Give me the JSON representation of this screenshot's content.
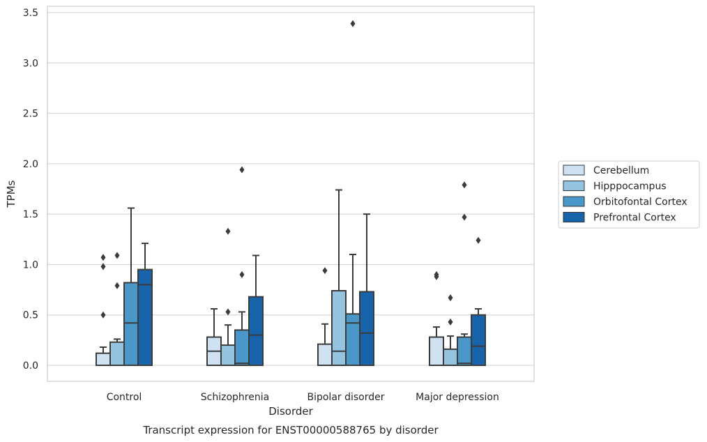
{
  "chart_data": {
    "type": "boxplot",
    "title": "",
    "caption": "Transcript expression for ENST00000588765 by disorder",
    "xlabel": "Disorder",
    "ylabel": "TPMs",
    "ylim": [
      -0.17,
      3.56
    ],
    "yticks": [
      "0.0",
      "0.5",
      "1.0",
      "1.5",
      "2.0",
      "2.5",
      "3.0",
      "3.5"
    ],
    "ytick_values": [
      0,
      0.5,
      1.0,
      1.5,
      2.0,
      2.5,
      3.0,
      3.5
    ],
    "grid": true,
    "legend_position": "right",
    "categories": [
      "Control",
      "Schizophrenia",
      "Bipolar disorder",
      "Major depression"
    ],
    "series": [
      {
        "name": "Cerebellum",
        "color": "#d0e1f2"
      },
      {
        "name": "Hipppocampus",
        "color": "#94c4df"
      },
      {
        "name": "Orbitofontal Cortex",
        "color": "#4a98c9"
      },
      {
        "name": "Prefrontal Cortex",
        "color": "#1764ab"
      }
    ],
    "boxes": [
      [
        {
          "q1": 0.0,
          "median": 0.0,
          "q3": 0.12,
          "whisker_low": 0.0,
          "whisker_high": 0.18,
          "outliers": [
            0.5,
            0.98,
            1.07
          ]
        },
        {
          "q1": 0.0,
          "median": 0.0,
          "q3": 0.23,
          "whisker_low": 0.0,
          "whisker_high": 0.26,
          "outliers": [
            0.79,
            1.09
          ]
        },
        {
          "q1": 0.0,
          "median": 0.42,
          "q3": 0.82,
          "whisker_low": 0.0,
          "whisker_high": 1.56,
          "outliers": []
        },
        {
          "q1": 0.0,
          "median": 0.8,
          "q3": 0.95,
          "whisker_low": 0.0,
          "whisker_high": 1.21,
          "outliers": []
        }
      ],
      [
        {
          "q1": 0.0,
          "median": 0.14,
          "q3": 0.28,
          "whisker_low": 0.0,
          "whisker_high": 0.56,
          "outliers": []
        },
        {
          "q1": 0.0,
          "median": 0.0,
          "q3": 0.2,
          "whisker_low": 0.0,
          "whisker_high": 0.4,
          "outliers": [
            0.53,
            1.33
          ]
        },
        {
          "q1": 0.0,
          "median": 0.02,
          "q3": 0.35,
          "whisker_low": 0.0,
          "whisker_high": 0.53,
          "outliers": [
            0.9,
            1.94
          ]
        },
        {
          "q1": 0.0,
          "median": 0.3,
          "q3": 0.68,
          "whisker_low": 0.0,
          "whisker_high": 1.09,
          "outliers": []
        }
      ],
      [
        {
          "q1": 0.0,
          "median": 0.0,
          "q3": 0.21,
          "whisker_low": 0.0,
          "whisker_high": 0.41,
          "outliers": [
            0.94
          ]
        },
        {
          "q1": 0.0,
          "median": 0.14,
          "q3": 0.74,
          "whisker_low": 0.0,
          "whisker_high": 1.74,
          "outliers": []
        },
        {
          "q1": 0.0,
          "median": 0.42,
          "q3": 0.51,
          "whisker_low": 0.0,
          "whisker_high": 1.1,
          "outliers": [
            3.39
          ]
        },
        {
          "q1": 0.0,
          "median": 0.32,
          "q3": 0.73,
          "whisker_low": 0.0,
          "whisker_high": 1.5,
          "outliers": []
        }
      ],
      [
        {
          "q1": 0.0,
          "median": 0.0,
          "q3": 0.28,
          "whisker_low": 0.0,
          "whisker_high": 0.38,
          "outliers": [
            0.88,
            0.9
          ]
        },
        {
          "q1": 0.0,
          "median": 0.0,
          "q3": 0.16,
          "whisker_low": 0.0,
          "whisker_high": 0.29,
          "outliers": [
            0.43,
            0.67
          ]
        },
        {
          "q1": 0.0,
          "median": 0.02,
          "q3": 0.28,
          "whisker_low": 0.0,
          "whisker_high": 0.31,
          "outliers": [
            1.47,
            1.79
          ]
        },
        {
          "q1": 0.0,
          "median": 0.19,
          "q3": 0.5,
          "whisker_low": 0.0,
          "whisker_high": 0.56,
          "outliers": [
            1.24
          ]
        }
      ]
    ]
  }
}
